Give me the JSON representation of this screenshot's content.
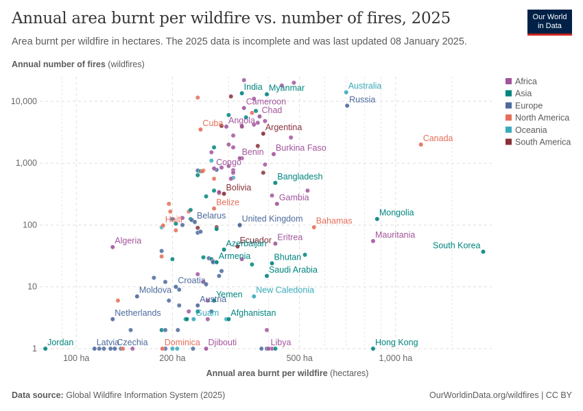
{
  "header": {
    "title": "Annual area burnt per wildfire vs. number of fires, 2025",
    "subtitle": "Area burnt per wildfire in hectares. The 2025 data is incomplete and was last updated 08 January 2025.",
    "logo_line1": "Our World",
    "logo_line2": "in Data"
  },
  "footer": {
    "source_label": "Data source:",
    "source_text": "Global Wildfire Information System (2025)",
    "url_text": "OurWorldinData.org/wildfires | CC BY"
  },
  "colors": {
    "Africa": "#a2559c",
    "Asia": "#00847e",
    "Europe": "#4c6a9c",
    "North America": "#e56e5a",
    "Oceania": "#38aaba",
    "South America": "#883039"
  },
  "chart_data": {
    "type": "scatter",
    "xlabel": "Annual area burnt per wildfire",
    "xlabel_unit": "(hectares)",
    "ylabel": "Annual number of fires",
    "ylabel_unit": "(wildfires)",
    "x_scale": "log",
    "y_scale": "log",
    "xlim": [
      78,
      2000
    ],
    "ylim": [
      1,
      25000
    ],
    "x_ticks": [
      {
        "value": 100,
        "label": "100 ha"
      },
      {
        "value": 200,
        "label": "200 ha"
      },
      {
        "value": 500,
        "label": "500 ha"
      },
      {
        "value": 1000,
        "label": "1,000 ha"
      }
    ],
    "y_ticks": [
      {
        "value": 1,
        "label": "1"
      },
      {
        "value": 10,
        "label": "10"
      },
      {
        "value": 100,
        "label": "100"
      },
      {
        "value": 1000,
        "label": "1,000"
      },
      {
        "value": 10000,
        "label": "10,000"
      }
    ],
    "grid": true,
    "legend_position": "right",
    "legend": [
      "Africa",
      "Asia",
      "Europe",
      "North America",
      "Oceania",
      "South America"
    ],
    "labeled_points": [
      {
        "name": "India",
        "region": "Asia",
        "x": 330,
        "y": 13500
      },
      {
        "name": "Myanmar",
        "region": "Asia",
        "x": 395,
        "y": 13000
      },
      {
        "name": "Australia",
        "region": "Oceania",
        "x": 700,
        "y": 14000
      },
      {
        "name": "Russia",
        "region": "Europe",
        "x": 705,
        "y": 8500
      },
      {
        "name": "Cameroon",
        "region": "Africa",
        "x": 335,
        "y": 7800
      },
      {
        "name": "Chad",
        "region": "Africa",
        "x": 375,
        "y": 5700
      },
      {
        "name": "Cuba",
        "region": "North America",
        "x": 245,
        "y": 3500
      },
      {
        "name": "Angola",
        "region": "Africa",
        "x": 295,
        "y": 3900
      },
      {
        "name": "Argentina",
        "region": "South America",
        "x": 385,
        "y": 3000
      },
      {
        "name": "Canada",
        "region": "North America",
        "x": 1200,
        "y": 2000
      },
      {
        "name": "Benin",
        "region": "Africa",
        "x": 325,
        "y": 1200
      },
      {
        "name": "Burkina Faso",
        "region": "Africa",
        "x": 415,
        "y": 1400
      },
      {
        "name": "Congo",
        "region": "Africa",
        "x": 270,
        "y": 820
      },
      {
        "name": "Bangladesh",
        "region": "Asia",
        "x": 420,
        "y": 480
      },
      {
        "name": "Bolivia",
        "region": "South America",
        "x": 290,
        "y": 320
      },
      {
        "name": "Gambia",
        "region": "Africa",
        "x": 425,
        "y": 220
      },
      {
        "name": "Belize",
        "region": "North America",
        "x": 270,
        "y": 185
      },
      {
        "name": "United Kingdom",
        "region": "Europe",
        "x": 325,
        "y": 100
      },
      {
        "name": "Bahamas",
        "region": "North America",
        "x": 555,
        "y": 92
      },
      {
        "name": "Mongolia",
        "region": "Asia",
        "x": 875,
        "y": 125
      },
      {
        "name": "Belarus",
        "region": "Europe",
        "x": 235,
        "y": 112
      },
      {
        "name": "Haiti",
        "region": "North America",
        "x": 187,
        "y": 98
      },
      {
        "name": "Ecuador",
        "region": "South America",
        "x": 320,
        "y": 45
      },
      {
        "name": "Eritrea",
        "region": "Africa",
        "x": 420,
        "y": 50
      },
      {
        "name": "Mauritania",
        "region": "Africa",
        "x": 850,
        "y": 55
      },
      {
        "name": "South Korea",
        "region": "Asia",
        "x": 1880,
        "y": 37
      },
      {
        "name": "Algeria",
        "region": "Africa",
        "x": 130,
        "y": 44
      },
      {
        "name": "Azerbaijan",
        "region": "Asia",
        "x": 290,
        "y": 40
      },
      {
        "name": "Bhutan",
        "region": "Asia",
        "x": 410,
        "y": 24
      },
      {
        "name": "Armenia",
        "region": "Asia",
        "x": 275,
        "y": 25
      },
      {
        "name": "Saudi Arabia",
        "region": "Asia",
        "x": 395,
        "y": 15
      },
      {
        "name": "Croatia",
        "region": "Europe",
        "x": 205,
        "y": 10
      },
      {
        "name": "Moldova",
        "region": "Europe",
        "x": 155,
        "y": 7
      },
      {
        "name": "New Caledonia",
        "region": "Oceania",
        "x": 360,
        "y": 7
      },
      {
        "name": "Yemen",
        "region": "Asia",
        "x": 270,
        "y": 6
      },
      {
        "name": "Austria",
        "region": "Europe",
        "x": 240,
        "y": 5
      },
      {
        "name": "Netherlands",
        "region": "Europe",
        "x": 130,
        "y": 3
      },
      {
        "name": "Guam",
        "region": "Oceania",
        "x": 233,
        "y": 3
      },
      {
        "name": "Afghanistan",
        "region": "Asia",
        "x": 300,
        "y": 3
      },
      {
        "name": "Jordan",
        "region": "Asia",
        "x": 80,
        "y": 1
      },
      {
        "name": "Latvia",
        "region": "Europe",
        "x": 114,
        "y": 1
      },
      {
        "name": "Czechia",
        "region": "Europe",
        "x": 132,
        "y": 1
      },
      {
        "name": "Dominica",
        "region": "North America",
        "x": 186,
        "y": 1
      },
      {
        "name": "Djibouti",
        "region": "Africa",
        "x": 255,
        "y": 1
      },
      {
        "name": "Libya",
        "region": "Africa",
        "x": 400,
        "y": 1
      },
      {
        "name": "Hong Kong",
        "region": "Asia",
        "x": 850,
        "y": 1
      }
    ],
    "points": [
      {
        "region": "Africa",
        "x": 335,
        "y": 22000
      },
      {
        "region": "Africa",
        "x": 480,
        "y": 20000
      },
      {
        "region": "Africa",
        "x": 440,
        "y": 18000
      },
      {
        "region": "South America",
        "x": 305,
        "y": 12000
      },
      {
        "region": "North America",
        "x": 240,
        "y": 11500
      },
      {
        "region": "Africa",
        "x": 360,
        "y": 11000
      },
      {
        "region": "Asia",
        "x": 300,
        "y": 6000
      },
      {
        "region": "Asia",
        "x": 340,
        "y": 5500
      },
      {
        "region": "Asia",
        "x": 365,
        "y": 7000
      },
      {
        "region": "North America",
        "x": 355,
        "y": 6500
      },
      {
        "region": "Africa",
        "x": 390,
        "y": 4800
      },
      {
        "region": "Africa",
        "x": 370,
        "y": 4500
      },
      {
        "region": "South America",
        "x": 285,
        "y": 4000
      },
      {
        "region": "South America",
        "x": 330,
        "y": 4000
      },
      {
        "region": "Africa",
        "x": 330,
        "y": 3900
      },
      {
        "region": "Africa",
        "x": 360,
        "y": 4200
      },
      {
        "region": "Africa",
        "x": 310,
        "y": 2800
      },
      {
        "region": "Africa",
        "x": 470,
        "y": 2600
      },
      {
        "region": "South America",
        "x": 370,
        "y": 1900
      },
      {
        "region": "Africa",
        "x": 300,
        "y": 2000
      },
      {
        "region": "Africa",
        "x": 310,
        "y": 1800
      },
      {
        "region": "Asia",
        "x": 270,
        "y": 1800
      },
      {
        "region": "Africa",
        "x": 265,
        "y": 1500
      },
      {
        "region": "Oceania",
        "x": 265,
        "y": 1100
      },
      {
        "region": "Africa",
        "x": 330,
        "y": 1200
      },
      {
        "region": "Africa",
        "x": 390,
        "y": 950
      },
      {
        "region": "Africa",
        "x": 300,
        "y": 900
      },
      {
        "region": "Europe",
        "x": 240,
        "y": 760
      },
      {
        "region": "Asia",
        "x": 245,
        "y": 740
      },
      {
        "region": "North America",
        "x": 250,
        "y": 760
      },
      {
        "region": "North America",
        "x": 248,
        "y": 740
      },
      {
        "region": "Asia",
        "x": 240,
        "y": 640
      },
      {
        "region": "Europe",
        "x": 275,
        "y": 780
      },
      {
        "region": "Africa",
        "x": 310,
        "y": 770
      },
      {
        "region": "Africa",
        "x": 310,
        "y": 700
      },
      {
        "region": "South America",
        "x": 385,
        "y": 700
      },
      {
        "region": "Africa",
        "x": 285,
        "y": 850
      },
      {
        "region": "North America",
        "x": 270,
        "y": 560
      },
      {
        "region": "Oceania",
        "x": 310,
        "y": 580
      },
      {
        "region": "Africa",
        "x": 305,
        "y": 560
      },
      {
        "region": "Asia",
        "x": 270,
        "y": 360
      },
      {
        "region": "South America",
        "x": 280,
        "y": 330
      },
      {
        "region": "Africa",
        "x": 280,
        "y": 340
      },
      {
        "region": "Asia",
        "x": 255,
        "y": 290
      },
      {
        "region": "Africa",
        "x": 410,
        "y": 300
      },
      {
        "region": "Africa",
        "x": 530,
        "y": 360
      },
      {
        "region": "North America",
        "x": 195,
        "y": 220
      },
      {
        "region": "North America",
        "x": 197,
        "y": 165
      },
      {
        "region": "North America",
        "x": 225,
        "y": 165
      },
      {
        "region": "Asia",
        "x": 228,
        "y": 175
      },
      {
        "region": "Asia",
        "x": 228,
        "y": 125
      },
      {
        "region": "Africa",
        "x": 215,
        "y": 130
      },
      {
        "region": "Europe",
        "x": 200,
        "y": 125
      },
      {
        "region": "Europe",
        "x": 230,
        "y": 120
      },
      {
        "region": "Asia",
        "x": 205,
        "y": 105
      },
      {
        "region": "Europe",
        "x": 215,
        "y": 100
      },
      {
        "region": "Oceania",
        "x": 185,
        "y": 92
      },
      {
        "region": "North America",
        "x": 205,
        "y": 82
      },
      {
        "region": "Europe",
        "x": 240,
        "y": 75
      },
      {
        "region": "Europe",
        "x": 245,
        "y": 78
      },
      {
        "region": "South America",
        "x": 275,
        "y": 92
      },
      {
        "region": "Asia",
        "x": 275,
        "y": 86
      },
      {
        "region": "South America",
        "x": 240,
        "y": 90
      },
      {
        "region": "Africa",
        "x": 325,
        "y": 98
      },
      {
        "region": "Europe",
        "x": 185,
        "y": 38
      },
      {
        "region": "North America",
        "x": 185,
        "y": 31
      },
      {
        "region": "Asia",
        "x": 200,
        "y": 28
      },
      {
        "region": "Europe",
        "x": 260,
        "y": 29
      },
      {
        "region": "Asia",
        "x": 250,
        "y": 30
      },
      {
        "region": "Asia",
        "x": 265,
        "y": 28
      },
      {
        "region": "Africa",
        "x": 268,
        "y": 26
      },
      {
        "region": "Europe",
        "x": 268,
        "y": 25
      },
      {
        "region": "Europe",
        "x": 285,
        "y": 18
      },
      {
        "region": "Europe",
        "x": 280,
        "y": 15
      },
      {
        "region": "Africa",
        "x": 240,
        "y": 16
      },
      {
        "region": "Africa",
        "x": 330,
        "y": 28
      },
      {
        "region": "Asia",
        "x": 355,
        "y": 23
      },
      {
        "region": "Asia",
        "x": 520,
        "y": 33
      },
      {
        "region": "Europe",
        "x": 175,
        "y": 14
      },
      {
        "region": "Europe",
        "x": 190,
        "y": 12
      },
      {
        "region": "Europe",
        "x": 210,
        "y": 9
      },
      {
        "region": "Africa",
        "x": 250,
        "y": 12
      },
      {
        "region": "Europe",
        "x": 255,
        "y": 11
      },
      {
        "region": "North America",
        "x": 135,
        "y": 6
      },
      {
        "region": "Europe",
        "x": 195,
        "y": 6
      },
      {
        "region": "Africa",
        "x": 258,
        "y": 6
      },
      {
        "region": "Europe",
        "x": 210,
        "y": 5
      },
      {
        "region": "Africa",
        "x": 225,
        "y": 4
      },
      {
        "region": "Asia",
        "x": 240,
        "y": 4
      },
      {
        "region": "Europe",
        "x": 265,
        "y": 4
      },
      {
        "region": "Asia",
        "x": 220,
        "y": 3
      },
      {
        "region": "Asia",
        "x": 222,
        "y": 3
      },
      {
        "region": "Africa",
        "x": 258,
        "y": 3
      },
      {
        "region": "Oceania",
        "x": 295,
        "y": 3
      },
      {
        "region": "Europe",
        "x": 148,
        "y": 2
      },
      {
        "region": "Asia",
        "x": 185,
        "y": 2
      },
      {
        "region": "Europe",
        "x": 190,
        "y": 2
      },
      {
        "region": "Europe",
        "x": 208,
        "y": 2
      },
      {
        "region": "Africa",
        "x": 395,
        "y": 2
      },
      {
        "region": "Europe",
        "x": 118,
        "y": 1
      },
      {
        "region": "Europe",
        "x": 122,
        "y": 1
      },
      {
        "region": "Europe",
        "x": 128,
        "y": 1
      },
      {
        "region": "Europe",
        "x": 138,
        "y": 1
      },
      {
        "region": "North America",
        "x": 140,
        "y": 1
      },
      {
        "region": "Africa",
        "x": 150,
        "y": 1
      },
      {
        "region": "Europe",
        "x": 190,
        "y": 1
      },
      {
        "region": "Oceania",
        "x": 200,
        "y": 1
      },
      {
        "region": "Oceania",
        "x": 207,
        "y": 1
      },
      {
        "region": "Europe",
        "x": 232,
        "y": 1
      },
      {
        "region": "Europe",
        "x": 380,
        "y": 1
      },
      {
        "region": "Europe",
        "x": 395,
        "y": 1
      },
      {
        "region": "Africa",
        "x": 410,
        "y": 1
      },
      {
        "region": "Asia",
        "x": 420,
        "y": 1
      }
    ]
  }
}
